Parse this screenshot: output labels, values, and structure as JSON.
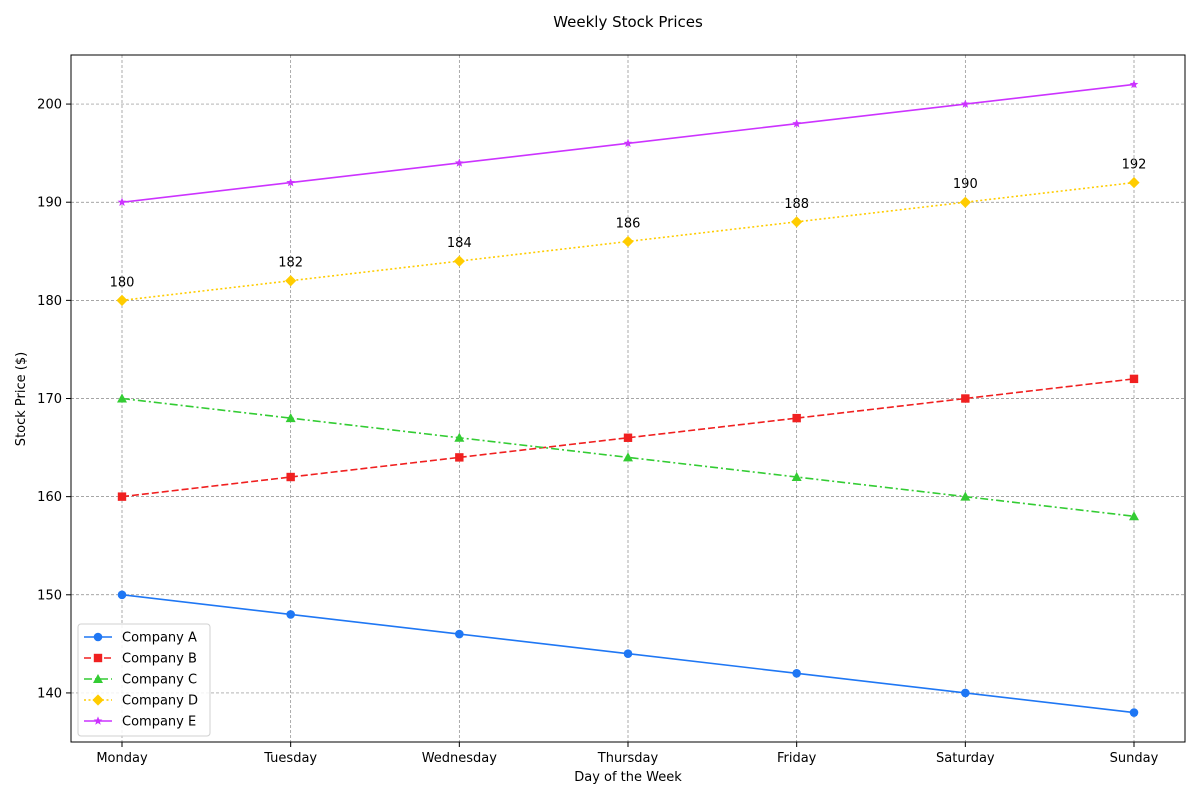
{
  "chart_data": {
    "type": "line",
    "title": "Weekly Stock Prices",
    "xlabel": "Day of the Week",
    "ylabel": "Stock Price ($)",
    "categories": [
      "Monday",
      "Tuesday",
      "Wednesday",
      "Thursday",
      "Friday",
      "Saturday",
      "Sunday"
    ],
    "ylim": [
      135,
      205
    ],
    "yticks": [
      140,
      150,
      160,
      170,
      180,
      190,
      200
    ],
    "grid": true,
    "legend_position": "bottom-left",
    "series": [
      {
        "name": "Company A",
        "values": [
          150,
          148,
          146,
          144,
          142,
          140,
          138
        ],
        "color": "#1f77f4",
        "marker": "circle",
        "line_style": "solid",
        "show_labels": false
      },
      {
        "name": "Company B",
        "values": [
          160,
          162,
          164,
          166,
          168,
          170,
          172
        ],
        "color": "#f02020",
        "marker": "square",
        "line_style": "dashed",
        "show_labels": false
      },
      {
        "name": "Company C",
        "values": [
          170,
          168,
          166,
          164,
          162,
          160,
          158
        ],
        "color": "#33cc33",
        "marker": "triangle",
        "line_style": "dashdot",
        "show_labels": false
      },
      {
        "name": "Company D",
        "values": [
          180,
          182,
          184,
          186,
          188,
          190,
          192
        ],
        "color": "#ffcc00",
        "marker": "diamond",
        "line_style": "dotted",
        "show_labels": true
      },
      {
        "name": "Company E",
        "values": [
          190,
          192,
          194,
          196,
          198,
          200,
          202
        ],
        "color": "#cc33ff",
        "marker": "star",
        "line_style": "solid",
        "show_labels": false
      }
    ]
  }
}
